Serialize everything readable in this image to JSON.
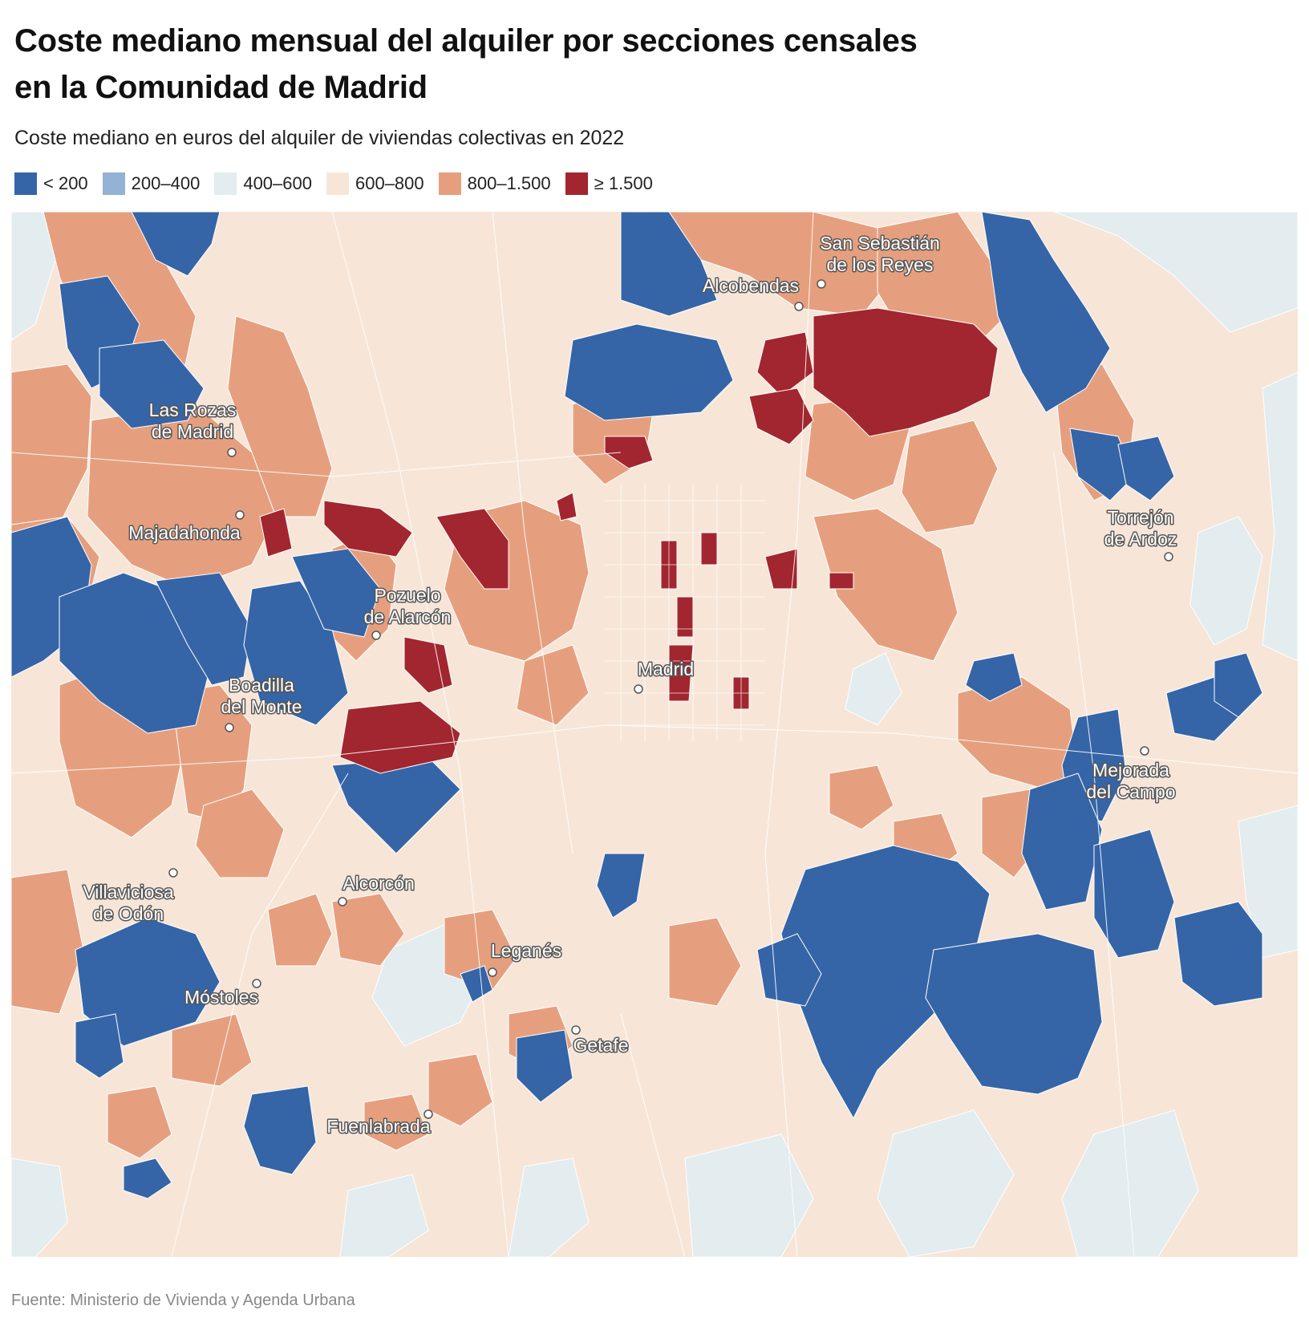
{
  "title_lines": [
    "Coste mediano mensual del alquiler por secciones censales",
    "en la Comunidad de Madrid"
  ],
  "subtitle": "Coste mediano en euros del alquiler de viviendas colectivas en 2022",
  "legend": [
    {
      "label": "< 200",
      "color": "#3565a7"
    },
    {
      "label": "200–400",
      "color": "#94b1d6"
    },
    {
      "label": "400–600",
      "color": "#e3ecee"
    },
    {
      "label": "600–800",
      "color": "#f7e6d8"
    },
    {
      "label": "800–1.500",
      "color": "#e69f7e"
    },
    {
      "label": "≥ 1.500",
      "color": "#a2262f"
    }
  ],
  "cities": [
    {
      "name": "San Sebastián de los Reyes",
      "lines": [
        "San Sebastián",
        "de los Reyes"
      ]
    },
    {
      "name": "Alcobendas",
      "lines": [
        "Alcobendas"
      ]
    },
    {
      "name": "Las Rozas de Madrid",
      "lines": [
        "Las Rozas",
        "de Madrid"
      ]
    },
    {
      "name": "Majadahonda",
      "lines": [
        "Majadahonda"
      ]
    },
    {
      "name": "Torrejón de Ardoz",
      "lines": [
        "Torrejón",
        "de Ardoz"
      ]
    },
    {
      "name": "Pozuelo de Alarcón",
      "lines": [
        "Pozuelo",
        "de Alarcón"
      ]
    },
    {
      "name": "Madrid",
      "lines": [
        "Madrid"
      ]
    },
    {
      "name": "Boadilla del Monte",
      "lines": [
        "Boadilla",
        "del Monte"
      ]
    },
    {
      "name": "Mejorada del Campo",
      "lines": [
        "Mejorada",
        "del Campo"
      ]
    },
    {
      "name": "Villaviciosa de Odón",
      "lines": [
        "Villaviciosa",
        "de Odón"
      ]
    },
    {
      "name": "Alcorcón",
      "lines": [
        "Alcorcón"
      ]
    },
    {
      "name": "Leganés",
      "lines": [
        "Leganés"
      ]
    },
    {
      "name": "Móstoles",
      "lines": [
        "Móstoles"
      ]
    },
    {
      "name": "Getafe",
      "lines": [
        "Getafe"
      ]
    },
    {
      "name": "Fuenlabrada",
      "lines": [
        "Fuenlabrada"
      ]
    }
  ],
  "source": "Fuente: Ministerio de Vivienda y Agenda Urbana"
}
